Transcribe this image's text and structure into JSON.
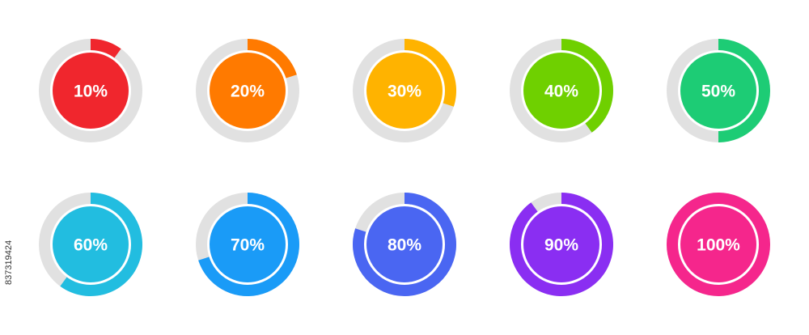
{
  "chart_data": {
    "type": "progress-ring",
    "values": [
      10,
      20,
      30,
      40,
      50,
      60,
      70,
      80,
      90,
      100
    ],
    "value_labels": [
      "10%",
      "20%",
      "30%",
      "40%",
      "50%",
      "60%",
      "70%",
      "80%",
      "90%",
      "100%"
    ],
    "colors": [
      "#f0262d",
      "#ff7a00",
      "#ffb300",
      "#6fd000",
      "#1dcc75",
      "#22bde0",
      "#1a9bf7",
      "#4a66f2",
      "#8a2ef2",
      "#f5268c"
    ],
    "max": 100,
    "track_color": "#e1e1e1"
  },
  "side_id": "837319424"
}
